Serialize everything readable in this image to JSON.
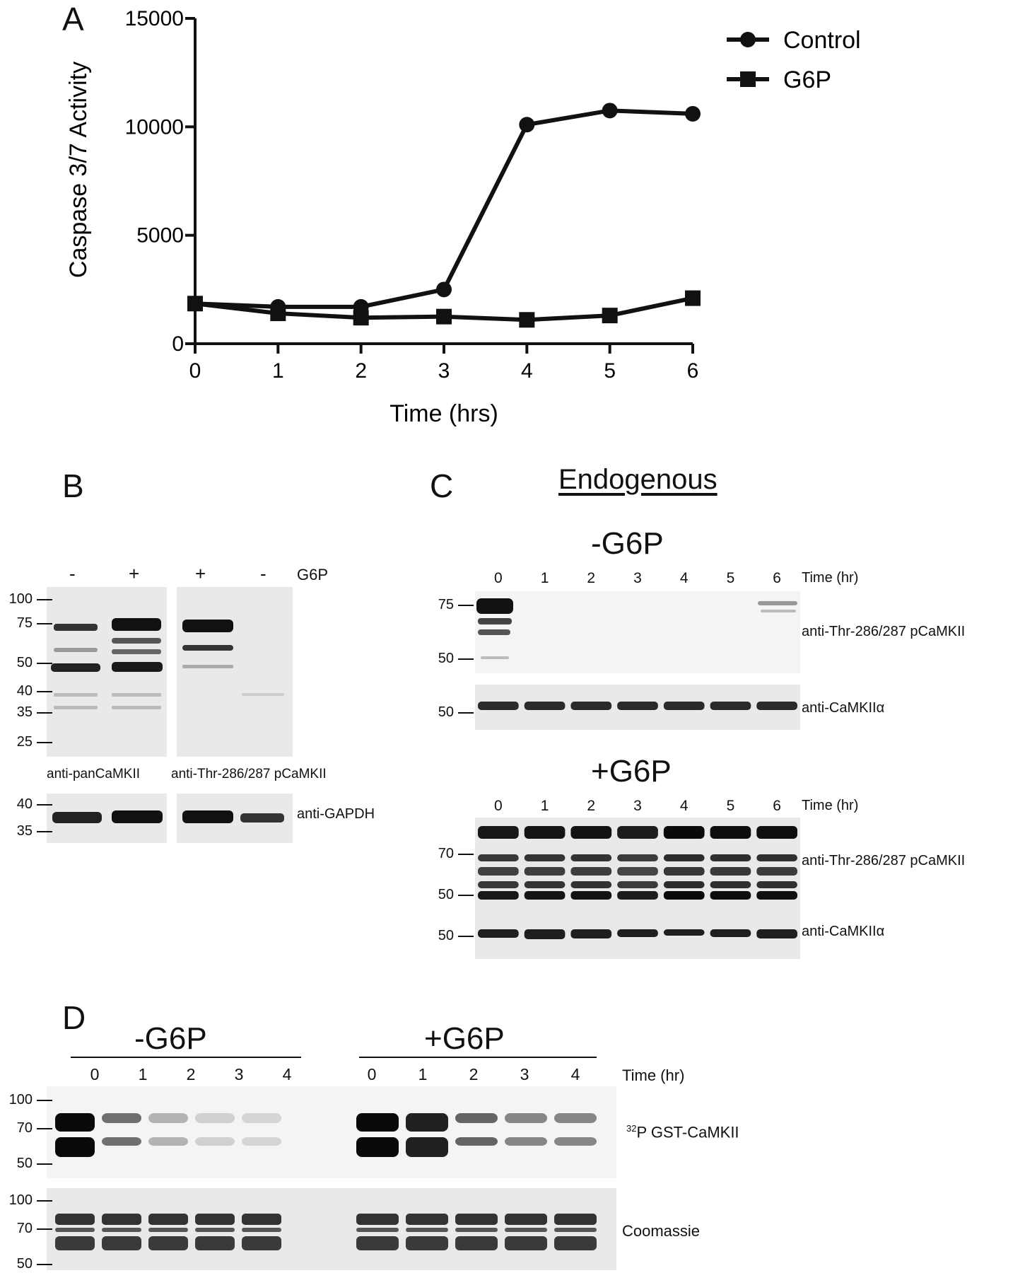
{
  "panels": {
    "A": {
      "letter": "A"
    },
    "B": {
      "letter": "B"
    },
    "C": {
      "letter": "C",
      "title": "Endogenous"
    },
    "D": {
      "letter": "D"
    }
  },
  "chart_data": {
    "type": "line",
    "xlabel": "Time (hrs)",
    "ylabel": "Caspase 3/7 Activity",
    "x": [
      0,
      1,
      2,
      3,
      4,
      5,
      6
    ],
    "xlim": [
      0,
      6
    ],
    "ylim": [
      0,
      15000
    ],
    "yticks": [
      0,
      5000,
      10000,
      15000
    ],
    "xticks": [
      0,
      1,
      2,
      3,
      4,
      5,
      6
    ],
    "grid": false,
    "legend": "top-right",
    "series": [
      {
        "name": "Control",
        "marker": "circle",
        "values": [
          1850,
          1700,
          1700,
          2500,
          10100,
          10750,
          10600
        ]
      },
      {
        "name": "G6P",
        "marker": "square",
        "values": [
          1850,
          1400,
          1200,
          1250,
          1100,
          1300,
          2100
        ]
      }
    ]
  },
  "panelB": {
    "lanes": [
      "-",
      "+",
      "+",
      "-"
    ],
    "condition_label": "G6P",
    "markers_top": [
      "100",
      "75",
      "50",
      "40",
      "35",
      "25"
    ],
    "markers_bottom": [
      "40",
      "35"
    ],
    "antibody_left": "anti-panCaMKII",
    "antibody_right": "anti-Thr-286/287 pCaMKII",
    "antibody_gapdh": "anti-GAPDH"
  },
  "panelC": {
    "minus_title": "-G6P",
    "plus_title": "+G6P",
    "lanes": [
      "0",
      "1",
      "2",
      "3",
      "4",
      "5",
      "6"
    ],
    "time_label": "Time (hr)",
    "minus_markers": [
      "75",
      "50"
    ],
    "minus_markers_ctrl": [
      "50"
    ],
    "plus_markers": [
      "70",
      "50"
    ],
    "plus_markers_ctrl": [
      "50"
    ],
    "antibody_phospho": "anti-Thr-286/287 pCaMKII",
    "antibody_total": "anti-CaMKIIα"
  },
  "panelD": {
    "minus_title": "-G6P",
    "plus_title": "+G6P",
    "lanes_minus": [
      "0",
      "1",
      "2",
      "3",
      "4"
    ],
    "lanes_plus": [
      "0",
      "1",
      "2",
      "3",
      "4"
    ],
    "time_label": "Time (hr)",
    "markers_top": [
      "100",
      "70",
      "50"
    ],
    "markers_bottom": [
      "100",
      "70",
      "50"
    ],
    "label_32p_sup": "32",
    "label_32p_rest": "P GST-CaMKII",
    "label_coomassie": "Coomassie"
  }
}
